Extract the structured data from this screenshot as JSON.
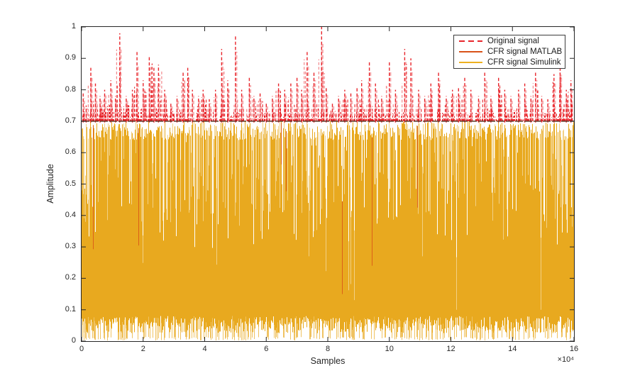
{
  "chart_data": {
    "type": "line",
    "title": "",
    "xlabel": "Samples",
    "ylabel": "Amplitude",
    "x_multiplier_label": "×10⁴",
    "xlim_display_units": [
      0,
      16
    ],
    "ylim": [
      0,
      1
    ],
    "x_ticks": [
      0,
      2,
      4,
      6,
      8,
      10,
      12,
      14,
      16
    ],
    "x_tick_labels": [
      "0",
      "2",
      "4",
      "6",
      "8",
      "10",
      "12",
      "14",
      "16"
    ],
    "y_ticks": [
      0,
      0.1,
      0.2,
      0.3,
      0.4,
      0.5,
      0.6,
      0.7,
      0.8,
      0.9,
      1
    ],
    "y_tick_labels": [
      "0",
      "0.1",
      "0.2",
      "0.3",
      "0.4",
      "0.5",
      "0.6",
      "0.7",
      "0.8",
      "0.9",
      "1"
    ],
    "grid": false,
    "clipping_threshold": 0.7,
    "legend": {
      "position": "upper-right",
      "items": [
        {
          "label": "Original signal",
          "color": "#E8252B",
          "style": "dashed"
        },
        {
          "label": "CFR signal MATLAB",
          "color": "#D95319",
          "style": "solid"
        },
        {
          "label": "CFR signal Simulink",
          "color": "#EDB120",
          "style": "solid"
        }
      ]
    },
    "series": [
      {
        "name": "Original signal",
        "color": "#E8252B",
        "style": "dashed",
        "description_peaks_above_threshold": true
      },
      {
        "name": "CFR signal MATLAB",
        "color": "#D95319",
        "style": "solid",
        "max_amplitude": 0.7
      },
      {
        "name": "CFR signal Simulink",
        "color": "#E6A81E",
        "style": "solid",
        "max_amplitude": 0.7
      }
    ],
    "colors": {
      "body_gold": "#E8A91F",
      "body_orange": "#D95319",
      "spike_red": "#E8252B",
      "threshold_line": "#5a3526",
      "axis": "#262626"
    },
    "red_peaks": [
      [
        0.05,
        0.79
      ],
      [
        0.15,
        0.75
      ],
      [
        0.3,
        0.87
      ],
      [
        0.45,
        0.82
      ],
      [
        0.6,
        0.78
      ],
      [
        0.75,
        0.8
      ],
      [
        0.95,
        0.83
      ],
      [
        1.1,
        0.78
      ],
      [
        1.24,
        0.98
      ],
      [
        1.45,
        0.78
      ],
      [
        1.65,
        0.8
      ],
      [
        1.8,
        0.92
      ],
      [
        2.0,
        0.83
      ],
      [
        2.2,
        0.91
      ],
      [
        2.35,
        0.87
      ],
      [
        2.5,
        0.88
      ],
      [
        2.7,
        0.8
      ],
      [
        2.9,
        0.76
      ],
      [
        3.1,
        0.78
      ],
      [
        3.3,
        0.86
      ],
      [
        3.45,
        0.87
      ],
      [
        3.6,
        0.8
      ],
      [
        3.8,
        0.78
      ],
      [
        3.95,
        0.8
      ],
      [
        4.15,
        0.77
      ],
      [
        4.35,
        0.8
      ],
      [
        4.55,
        0.93
      ],
      [
        4.75,
        0.83
      ],
      [
        5.0,
        0.97
      ],
      [
        5.2,
        0.8
      ],
      [
        5.45,
        0.84
      ],
      [
        5.6,
        0.78
      ],
      [
        5.8,
        0.79
      ],
      [
        6.0,
        0.76
      ],
      [
        6.2,
        0.78
      ],
      [
        6.4,
        0.82
      ],
      [
        6.6,
        0.8
      ],
      [
        6.8,
        0.82
      ],
      [
        7.0,
        0.84
      ],
      [
        7.15,
        0.8
      ],
      [
        7.33,
        0.92
      ],
      [
        7.55,
        0.86
      ],
      [
        7.8,
        1.0
      ],
      [
        7.95,
        0.81
      ],
      [
        8.15,
        0.76
      ],
      [
        8.35,
        0.78
      ],
      [
        8.55,
        0.8
      ],
      [
        8.75,
        0.79
      ],
      [
        8.95,
        0.81
      ],
      [
        9.1,
        0.83
      ],
      [
        9.35,
        0.89
      ],
      [
        9.55,
        0.82
      ],
      [
        9.75,
        0.78
      ],
      [
        10.0,
        0.89
      ],
      [
        10.2,
        0.8
      ],
      [
        10.5,
        0.93
      ],
      [
        10.7,
        0.9
      ],
      [
        10.95,
        0.8
      ],
      [
        11.15,
        0.78
      ],
      [
        11.35,
        0.82
      ],
      [
        11.6,
        0.86
      ],
      [
        11.85,
        0.78
      ],
      [
        12.05,
        0.8
      ],
      [
        12.25,
        0.81
      ],
      [
        12.45,
        0.84
      ],
      [
        12.65,
        0.8
      ],
      [
        12.9,
        0.78
      ],
      [
        13.1,
        0.86
      ],
      [
        13.3,
        0.78
      ],
      [
        13.55,
        0.84
      ],
      [
        13.75,
        0.8
      ],
      [
        13.95,
        0.78
      ],
      [
        14.2,
        0.8
      ],
      [
        14.4,
        0.82
      ],
      [
        14.6,
        0.78
      ],
      [
        14.75,
        0.86
      ],
      [
        14.95,
        0.78
      ],
      [
        15.15,
        0.77
      ],
      [
        15.35,
        0.85
      ],
      [
        15.55,
        0.88
      ],
      [
        15.75,
        0.8
      ],
      [
        15.9,
        0.83
      ]
    ]
  }
}
